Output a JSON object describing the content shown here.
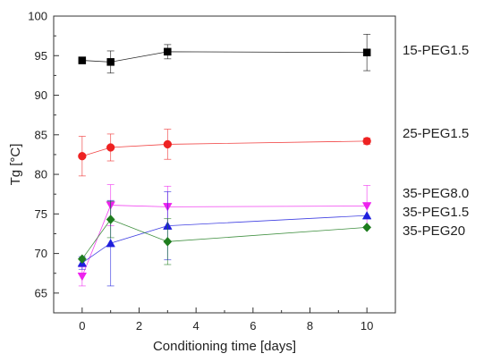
{
  "chart_data": {
    "type": "scatter",
    "xlabel": "Conditioning time [days]",
    "ylabel": "Tg [°C]",
    "xlim": [
      -1,
      11
    ],
    "ylim": [
      62.5,
      100
    ],
    "xticks": [
      0,
      2,
      4,
      6,
      8,
      10
    ],
    "yticks": [
      65,
      70,
      75,
      80,
      85,
      90,
      95,
      100
    ],
    "series": [
      {
        "name": "15-PEG1.5",
        "marker": "square",
        "color": "#000000",
        "x": [
          0,
          1,
          3,
          10
        ],
        "y": [
          94.4,
          94.2,
          95.5,
          95.4
        ],
        "err": [
          0,
          1.4,
          0.9,
          2.3
        ]
      },
      {
        "name": "25-PEG1.5",
        "marker": "circle",
        "color": "#ee2222",
        "x": [
          0,
          1,
          3,
          10
        ],
        "y": [
          82.3,
          83.4,
          83.8,
          84.2
        ],
        "err": [
          2.5,
          1.7,
          1.9,
          0.4
        ]
      },
      {
        "name": "35-PEG8.0",
        "marker": "triangle-down",
        "color": "#ee22ee",
        "x": [
          0,
          1,
          3,
          10
        ],
        "y": [
          67.1,
          76.1,
          75.9,
          76.0
        ],
        "err": [
          1.2,
          2.6,
          2.6,
          2.6
        ]
      },
      {
        "name": "35-PEG1.5",
        "marker": "triangle-up",
        "color": "#1f1fdd",
        "x": [
          0,
          1,
          3,
          10
        ],
        "y": [
          68.8,
          71.3,
          73.5,
          74.8
        ],
        "err": [
          0.8,
          5.4,
          4.3,
          0
        ]
      },
      {
        "name": "35-PEG20",
        "marker": "diamond",
        "color": "#1e7d1e",
        "x": [
          0,
          1,
          3,
          10
        ],
        "y": [
          69.3,
          74.3,
          71.5,
          73.3
        ],
        "err": [
          0,
          2.3,
          2.9,
          0
        ]
      }
    ]
  }
}
